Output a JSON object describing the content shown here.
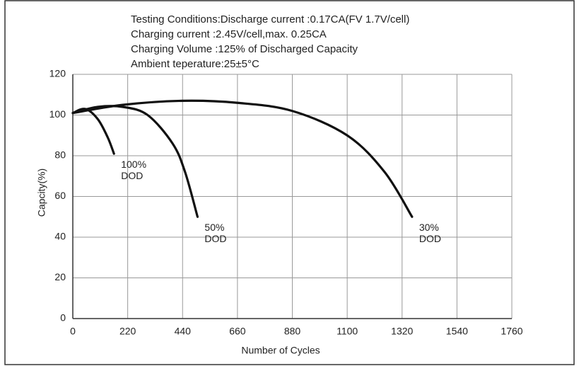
{
  "chart_data": {
    "type": "line",
    "title_lines": [
      "Testing Conditions:Discharge current   :0.17CA(FV 1.7V/cell)",
      "Charging current   :2.45V/cell,max. 0.25CA",
      "Charging Volume   :125% of Discharged Capacity",
      "Ambient teperature:25±5°C"
    ],
    "x_label": "Number of Cycles",
    "y_label": "Capcity(%)",
    "xlim": [
      0,
      1760
    ],
    "xticks": [
      0,
      220,
      440,
      660,
      880,
      1100,
      1320,
      1540,
      1760
    ],
    "ylim": [
      0,
      120
    ],
    "yticks": [
      0,
      20,
      40,
      60,
      80,
      100,
      120
    ],
    "grid": true,
    "series": [
      {
        "name": [
          "100%",
          "DOD"
        ],
        "color": "#111111",
        "x": [
          0,
          50,
          100,
          140,
          165
        ],
        "values": [
          101,
          103,
          98,
          89,
          81
        ]
      },
      {
        "name": [
          "50%",
          "DOD"
        ],
        "color": "#111111",
        "x": [
          0,
          100,
          200,
          300,
          400,
          450,
          500
        ],
        "values": [
          101,
          104,
          104,
          100,
          86,
          72,
          50
        ]
      },
      {
        "name": [
          "30%",
          "DOD"
        ],
        "color": "#111111",
        "x": [
          0,
          200,
          440,
          660,
          880,
          1100,
          1250,
          1360
        ],
        "values": [
          101,
          105,
          107,
          106,
          102,
          90,
          72,
          50
        ]
      }
    ]
  }
}
